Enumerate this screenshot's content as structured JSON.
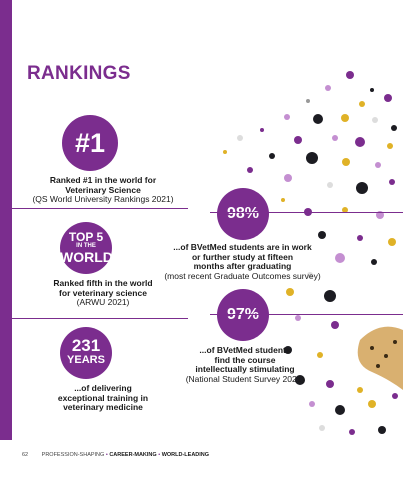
{
  "heading": "RANKINGS",
  "stats": {
    "rank_badge": "#1",
    "rank_text_1": "Ranked #1 in the world for",
    "rank_text_2": "Veterinary Science",
    "rank_source": "(QS World University Rankings 2021)",
    "top5_line1": "TOP 5",
    "top5_line2": "IN THE",
    "top5_line3": "WORLD",
    "top5_text_1": "Ranked fifth in the world",
    "top5_text_2": "for veterinary science",
    "top5_source": "(ARWU 2021)",
    "years_number": "231",
    "years_label": "YEARS",
    "years_text_1": "...of delivering",
    "years_text_2": "exceptional training in",
    "years_text_3": "veterinary medicine",
    "pct1": "98%",
    "pct1_text_1": "...of BVetMed students are in work",
    "pct1_text_2": "or further study at fifteen",
    "pct1_text_3": "months after graduating",
    "pct1_source": "(most recent Graduate Outcomes survey)",
    "pct2": "97%",
    "pct2_text_1": "...of BVetMed students",
    "pct2_text_2": "find the course",
    "pct2_text_3": "intellectually stimulating",
    "pct2_source": "(National Student Survey 2021)"
  },
  "footer": {
    "page_number": "62",
    "part1": "PROFESSION-SHAPING",
    "part2": "CAREER-MAKING",
    "part3": "WORLD-LEADING",
    "separator": "•"
  },
  "colors": {
    "accent": "#7b2d8e",
    "gold": "#e0b227",
    "dark": "#1c1c22",
    "lilac": "#c48fd1"
  }
}
